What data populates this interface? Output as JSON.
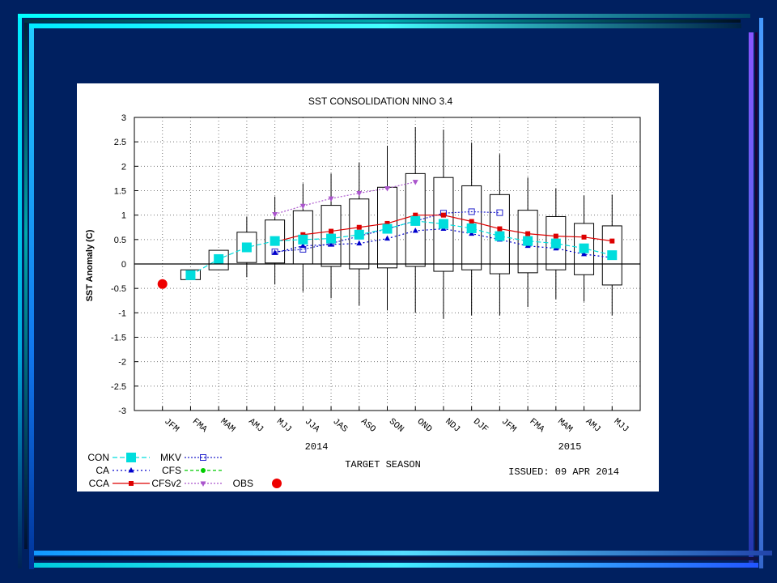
{
  "slide": {
    "background": "#002060"
  },
  "chart_data": {
    "type": "box-and-line",
    "title": "SST CONSOLIDATION NINO 3.4",
    "ylabel": "SST Anomaly (C)",
    "xlabel": "TARGET SEASON",
    "issued": "ISSUED: 09 APR 2014",
    "year_labels": [
      "2014",
      "2015"
    ],
    "ylim": [
      -3,
      3
    ],
    "yticks": [
      -3,
      -2.5,
      -2,
      -1.5,
      -1,
      -0.5,
      0,
      0.5,
      1,
      1.5,
      2,
      2.5,
      3
    ],
    "ytick_labels": [
      "-3",
      "-2.5",
      "-2",
      "-1.5",
      "-1",
      "-0.5",
      "0",
      "0.5",
      "1",
      "1.5",
      "2",
      "2.5",
      "3"
    ],
    "categories": [
      "JFM",
      "FMA",
      "MAM",
      "AMJ",
      "MJJ",
      "JJA",
      "JAS",
      "ASO",
      "SON",
      "OND",
      "NDJ",
      "DJF",
      "JFM",
      "FMA",
      "MAM",
      "AMJ",
      "MJJ"
    ],
    "grid": true,
    "boxes": [
      null,
      {
        "low": -0.32,
        "high": -0.12,
        "whisker_low": -0.32,
        "whisker_high": -0.12
      },
      {
        "low": -0.12,
        "high": 0.28,
        "whisker_low": -0.12,
        "whisker_high": 0.28
      },
      {
        "low": 0.03,
        "high": 0.65,
        "whisker_low": -0.27,
        "whisker_high": 0.97
      },
      {
        "low": 0.02,
        "high": 0.9,
        "whisker_low": -0.42,
        "whisker_high": 1.38
      },
      {
        "low": 0.0,
        "high": 1.09,
        "whisker_low": -0.57,
        "whisker_high": 1.65
      },
      {
        "low": -0.05,
        "high": 1.2,
        "whisker_low": -0.7,
        "whisker_high": 1.85
      },
      {
        "low": -0.1,
        "high": 1.33,
        "whisker_low": -0.85,
        "whisker_high": 2.08
      },
      {
        "low": -0.08,
        "high": 1.57,
        "whisker_low": -0.95,
        "whisker_high": 2.42
      },
      {
        "low": -0.05,
        "high": 1.85,
        "whisker_low": -1.0,
        "whisker_high": 2.8
      },
      {
        "low": -0.15,
        "high": 1.77,
        "whisker_low": -1.12,
        "whisker_high": 2.75
      },
      {
        "low": -0.12,
        "high": 1.6,
        "whisker_low": -1.05,
        "whisker_high": 2.48
      },
      {
        "low": -0.2,
        "high": 1.42,
        "whisker_low": -1.05,
        "whisker_high": 2.25
      },
      {
        "low": -0.18,
        "high": 1.1,
        "whisker_low": -0.88,
        "whisker_high": 1.77
      },
      {
        "low": -0.12,
        "high": 0.97,
        "whisker_low": -0.72,
        "whisker_high": 1.55
      },
      {
        "low": -0.22,
        "high": 0.83,
        "whisker_low": -0.77,
        "whisker_high": 1.4
      },
      {
        "low": -0.43,
        "high": 0.78,
        "whisker_low": -1.05,
        "whisker_high": 1.42
      }
    ],
    "series": [
      {
        "name": "CON",
        "color": "#00dddd",
        "marker": "big-square",
        "dash": "6,3",
        "values": [
          null,
          -0.23,
          0.1,
          0.34,
          0.47,
          0.5,
          0.52,
          0.6,
          0.72,
          0.88,
          0.82,
          0.73,
          0.57,
          0.47,
          0.42,
          0.32,
          0.18
        ]
      },
      {
        "name": "CA",
        "color": "#0000cc",
        "marker": "triangle",
        "dash": "2,3",
        "values": [
          null,
          null,
          null,
          null,
          0.23,
          0.37,
          0.4,
          0.42,
          0.52,
          0.68,
          0.72,
          0.62,
          0.5,
          0.37,
          0.32,
          0.2,
          0.13
        ]
      },
      {
        "name": "CCA",
        "color": "#dd0000",
        "marker": "square",
        "dash": "",
        "values": [
          null,
          null,
          null,
          null,
          0.45,
          0.6,
          0.67,
          0.75,
          0.83,
          1.0,
          1.0,
          0.87,
          0.72,
          0.62,
          0.57,
          0.55,
          0.47
        ]
      },
      {
        "name": "MKV",
        "color": "#2222cc",
        "marker": "open-square",
        "dash": "2,2",
        "values": [
          null,
          null,
          null,
          null,
          0.25,
          0.3,
          0.42,
          0.57,
          0.72,
          0.88,
          1.04,
          1.07,
          1.05,
          null,
          null,
          null,
          null
        ]
      },
      {
        "name": "CFS",
        "color": "#00cc00",
        "marker": "circle",
        "dash": "4,3",
        "values": []
      },
      {
        "name": "CFSv2",
        "color": "#aa55cc",
        "marker": "inv-triangle",
        "dash": "2,2",
        "values": [
          null,
          null,
          null,
          null,
          1.02,
          1.19,
          1.34,
          1.45,
          1.55,
          1.68,
          null,
          null,
          null,
          null,
          null,
          null,
          null
        ]
      },
      {
        "name": "OBS",
        "color": "#ee0000",
        "marker": "dot",
        "dash": "",
        "values": [
          -0.41,
          null,
          null,
          null,
          null,
          null,
          null,
          null,
          null,
          null,
          null,
          null,
          null,
          null,
          null,
          null,
          null
        ]
      }
    ]
  }
}
